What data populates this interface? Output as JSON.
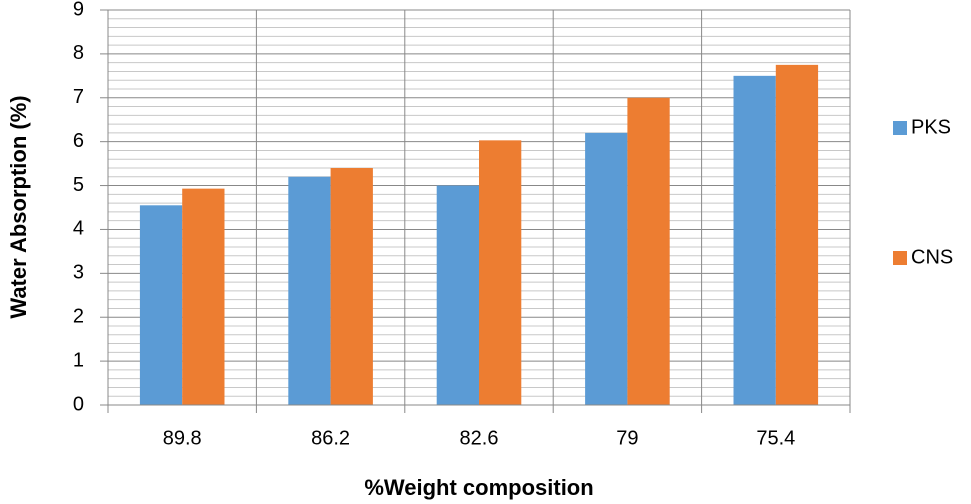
{
  "chart_data": {
    "type": "bar",
    "x_label": "%Weight composition",
    "y_label": "Water Absorption (%)",
    "categories": [
      "89.8",
      "86.2",
      "82.6",
      "79",
      "75.4"
    ],
    "series": [
      {
        "name": "PKS",
        "color": "#5b9bd5",
        "values": [
          4.55,
          5.2,
          5.0,
          6.2,
          7.5
        ]
      },
      {
        "name": "CNS",
        "color": "#ed7d31",
        "values": [
          4.93,
          5.4,
          6.03,
          7.0,
          7.75
        ]
      }
    ],
    "ylim": [
      0,
      9
    ],
    "yticks": [
      0,
      1,
      2,
      3,
      4,
      5,
      6,
      7,
      8,
      9
    ],
    "grid": true,
    "minor_grid": true,
    "legend": "right"
  }
}
